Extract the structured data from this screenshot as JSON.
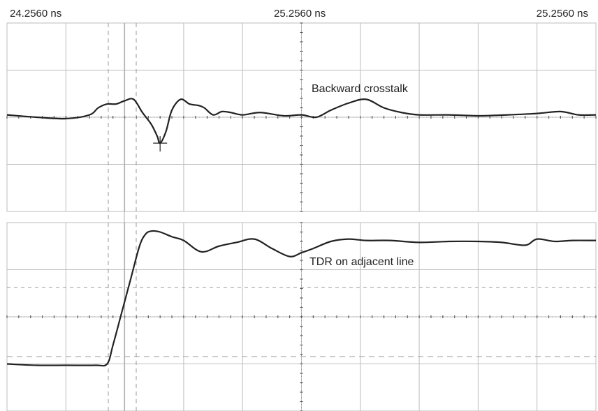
{
  "time_labels": {
    "left": "24.2560 ns",
    "center": "25.2560 ns",
    "right": "25.2560 ns"
  },
  "colors": {
    "grid": "#bdbdbd",
    "trace": "#222222",
    "background": "#ffffff"
  },
  "chart_data": [
    {
      "type": "line",
      "title": "",
      "annotation": "Backward crosstalk",
      "grid": true,
      "x_divisions": 10,
      "y_divisions": 4,
      "xlim": [
        0,
        10
      ],
      "ylim": [
        -2,
        2
      ],
      "cursor_marker": {
        "x": 2.6,
        "y": -0.55
      },
      "series": [
        {
          "x": [
            0,
            0.5,
            1.0,
            1.4,
            1.55,
            1.7,
            1.85,
            2.0,
            2.15,
            2.3,
            2.45,
            2.55,
            2.6,
            2.7,
            2.8,
            2.95,
            3.1,
            3.25,
            3.35,
            3.5,
            3.65,
            3.8,
            4.0,
            4.3,
            4.7,
            5.0,
            5.25,
            5.5,
            5.8,
            6.1,
            6.4,
            6.7,
            7.0,
            7.5,
            8.0,
            8.5,
            9.0,
            9.4,
            9.7,
            10.0
          ],
          "y": [
            0.05,
            0.0,
            -0.03,
            0.05,
            0.2,
            0.28,
            0.28,
            0.35,
            0.38,
            0.1,
            -0.15,
            -0.4,
            -0.55,
            -0.3,
            0.15,
            0.38,
            0.28,
            0.25,
            0.2,
            0.05,
            0.12,
            0.1,
            0.05,
            0.1,
            0.03,
            0.05,
            0.0,
            0.15,
            0.3,
            0.38,
            0.2,
            0.1,
            0.05,
            0.05,
            0.03,
            0.05,
            0.08,
            0.12,
            0.05,
            0.05
          ]
        }
      ]
    },
    {
      "type": "line",
      "title": "",
      "annotation": "TDR on adjacent line",
      "grid": true,
      "x_divisions": 10,
      "y_divisions": 4,
      "xlim": [
        0,
        10
      ],
      "ylim": [
        -2,
        2
      ],
      "series": [
        {
          "x": [
            0,
            0.5,
            1.0,
            1.5,
            1.7,
            1.8,
            1.95,
            2.1,
            2.25,
            2.35,
            2.45,
            2.6,
            2.8,
            3.0,
            3.3,
            3.6,
            3.9,
            4.2,
            4.5,
            4.8,
            5.0,
            5.2,
            5.5,
            5.8,
            6.1,
            6.5,
            7.0,
            7.5,
            8.0,
            8.4,
            8.8,
            9.0,
            9.3,
            9.6,
            10.0
          ],
          "y": [
            -1.0,
            -1.03,
            -1.03,
            -1.03,
            -1.0,
            -0.6,
            0.1,
            0.8,
            1.5,
            1.75,
            1.82,
            1.8,
            1.7,
            1.62,
            1.38,
            1.5,
            1.58,
            1.65,
            1.45,
            1.28,
            1.36,
            1.45,
            1.6,
            1.65,
            1.62,
            1.62,
            1.58,
            1.6,
            1.6,
            1.58,
            1.52,
            1.65,
            1.6,
            1.62,
            1.62
          ]
        }
      ]
    }
  ]
}
